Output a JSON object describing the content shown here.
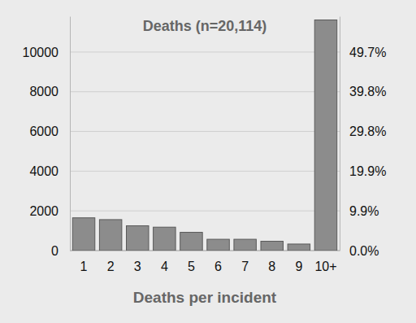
{
  "chart_data": {
    "type": "bar",
    "title": "Deaths (n=20,114)",
    "x_label": "Deaths per incident",
    "categories": [
      "1",
      "2",
      "3",
      "4",
      "5",
      "6",
      "7",
      "8",
      "9",
      "10+"
    ],
    "values": [
      1650,
      1560,
      1250,
      1180,
      920,
      570,
      570,
      470,
      330,
      11614
    ],
    "color": "#8c8c8c",
    "ylim": [
      0,
      11800
    ],
    "yticks": [
      0,
      2000,
      4000,
      6000,
      8000,
      10000
    ],
    "y2lim": [
      0,
      58.67
    ],
    "y2ticks": [
      {
        "value": 0,
        "label": "0.0%"
      },
      {
        "value": 9.9,
        "label": "9.9%"
      },
      {
        "value": 19.9,
        "label": "19.9%"
      },
      {
        "value": 29.8,
        "label": "29.8%"
      },
      {
        "value": 39.8,
        "label": "39.8%"
      },
      {
        "value": 49.7,
        "label": "49.7%"
      }
    ],
    "grid": true
  }
}
